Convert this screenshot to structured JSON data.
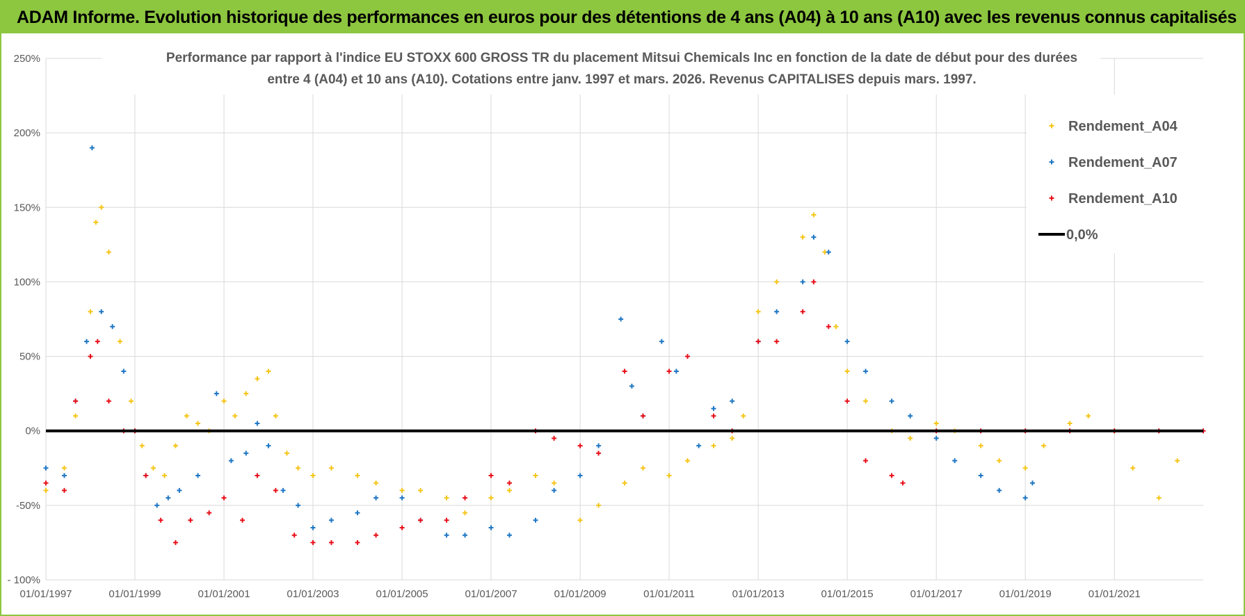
{
  "header": {
    "banner": "ADAM Informe. Evolution historique des performances en euros pour des détentions de 4 ans (A04) à 10 ans (A10) avec les revenus connus capitalisés"
  },
  "colors": {
    "banner_bg": "#8dc63f",
    "A04": "#f5c518",
    "A07": "#1f77c4",
    "A10": "#e8101a",
    "zero_line": "#000000",
    "grid": "#d9d9d9"
  },
  "chart_data": {
    "type": "scatter",
    "title_lines": [
      "Performance par rapport à l'indice EU STOXX 600 GROSS TR  du placement Mitsui Chemicals Inc en fonction de la date de début pour des durées",
      "entre 4 (A04) et 10 ans (A10).  Cotations entre janv. 1997 et mars. 2026.  Revenus CAPITALISES depuis mars. 1997."
    ],
    "x_range": [
      "1997-01-01",
      "2022-12-31"
    ],
    "x_ticks": [
      "01/01/1997",
      "01/01/1999",
      "01/01/2001",
      "01/01/2003",
      "01/01/2005",
      "01/01/2007",
      "01/01/2009",
      "01/01/2011",
      "01/01/2013",
      "01/01/2015",
      "01/01/2017",
      "01/01/2019",
      "01/01/2021"
    ],
    "y_range": [
      -100,
      250
    ],
    "y_ticks": [
      -100,
      -50,
      0,
      50,
      100,
      150,
      200,
      250
    ],
    "y_tick_labels": [
      "- 100%",
      "-50%",
      "0%",
      "50%",
      "100%",
      "150%",
      "200%",
      "250%"
    ],
    "grid": true,
    "legend_position": "top-right",
    "legend": [
      {
        "label": "Rendement_A04",
        "marker": "plus"
      },
      {
        "label": "Rendement_A07",
        "marker": "plus"
      },
      {
        "label": "Rendement_A10",
        "marker": "plus"
      },
      {
        "label": "0,0%",
        "marker": "line"
      }
    ],
    "series": [
      {
        "name": "Rendement_A04",
        "x": [
          "1997-01-01",
          "1997-06-01",
          "1997-09-01",
          "1998-01-01",
          "1998-02-15",
          "1998-04-01",
          "1998-06-01",
          "1998-09-01",
          "1998-12-01",
          "1999-03-01",
          "1999-06-01",
          "1999-09-01",
          "1999-12-01",
          "2000-03-01",
          "2000-06-01",
          "2000-09-01",
          "2001-01-01",
          "2001-04-01",
          "2001-07-01",
          "2001-10-01",
          "2002-01-01",
          "2002-03-01",
          "2002-06-01",
          "2002-09-01",
          "2003-01-01",
          "2003-06-01",
          "2004-01-01",
          "2004-06-01",
          "2005-01-01",
          "2005-06-01",
          "2006-01-01",
          "2006-06-01",
          "2007-01-01",
          "2007-06-01",
          "2008-01-01",
          "2008-06-01",
          "2009-01-01",
          "2009-06-01",
          "2010-01-01",
          "2010-06-01",
          "2011-01-01",
          "2011-06-01",
          "2012-01-01",
          "2012-06-01",
          "2012-09-01",
          "2013-01-01",
          "2013-06-01",
          "2014-01-01",
          "2014-04-01",
          "2014-07-01",
          "2014-10-01",
          "2015-01-01",
          "2015-06-01",
          "2016-01-01",
          "2016-06-01",
          "2017-01-01",
          "2017-06-01",
          "2018-01-01",
          "2018-06-01",
          "2019-01-01",
          "2019-06-01",
          "2020-01-01",
          "2020-06-01",
          "2021-01-01",
          "2021-06-01",
          "2022-01-01",
          "2022-06-01"
        ],
        "y": [
          -40,
          -25,
          10,
          80,
          140,
          150,
          120,
          60,
          20,
          -10,
          -25,
          -30,
          -10,
          10,
          5,
          0,
          20,
          10,
          25,
          35,
          40,
          10,
          -15,
          -25,
          -30,
          -25,
          -30,
          -35,
          -40,
          -40,
          -45,
          -55,
          -45,
          -40,
          -30,
          -35,
          -60,
          -50,
          -35,
          -25,
          -30,
          -20,
          -10,
          -5,
          10,
          80,
          100,
          130,
          145,
          120,
          70,
          40,
          20,
          0,
          -5,
          5,
          0,
          -10,
          -20,
          -25,
          -10,
          5,
          10,
          0,
          -25,
          -45,
          -20
        ]
      },
      {
        "name": "Rendement_A07",
        "x": [
          "1997-01-01",
          "1997-06-01",
          "1997-09-01",
          "1997-12-01",
          "1998-01-15",
          "1998-04-01",
          "1998-07-01",
          "1998-10-01",
          "1999-01-01",
          "1999-04-01",
          "1999-07-01",
          "1999-10-01",
          "2000-01-01",
          "2000-06-01",
          "2000-11-01",
          "2001-03-01",
          "2001-07-01",
          "2001-10-01",
          "2002-01-01",
          "2002-05-01",
          "2002-09-01",
          "2003-01-01",
          "2003-06-01",
          "2004-01-01",
          "2004-06-01",
          "2005-01-01",
          "2005-06-01",
          "2006-01-01",
          "2006-06-01",
          "2007-01-01",
          "2007-06-01",
          "2008-01-01",
          "2008-06-01",
          "2009-01-01",
          "2009-06-01",
          "2009-12-01",
          "2010-03-01",
          "2010-06-01",
          "2010-11-01",
          "2011-03-01",
          "2011-09-01",
          "2012-01-01",
          "2012-06-01",
          "2013-01-01",
          "2013-06-01",
          "2014-01-01",
          "2014-04-01",
          "2014-08-01",
          "2015-01-01",
          "2015-06-01",
          "2016-01-01",
          "2016-06-01",
          "2017-01-01",
          "2017-06-01",
          "2018-01-01",
          "2018-06-01",
          "2019-01-01",
          "2019-03-01"
        ],
        "y": [
          -25,
          -30,
          20,
          60,
          190,
          80,
          70,
          40,
          0,
          -30,
          -50,
          -45,
          -40,
          -30,
          25,
          -20,
          -15,
          5,
          -10,
          -40,
          -50,
          -65,
          -60,
          -55,
          -45,
          -45,
          -60,
          -70,
          -70,
          -65,
          -70,
          -60,
          -40,
          -30,
          -10,
          75,
          30,
          10,
          60,
          40,
          -10,
          15,
          20,
          60,
          80,
          100,
          130,
          120,
          60,
          40,
          20,
          10,
          -5,
          -20,
          -30,
          -40,
          -45,
          -35
        ]
      },
      {
        "name": "Rendement_A10",
        "x": [
          "1997-01-01",
          "1997-06-01",
          "1997-09-01",
          "1998-01-01",
          "1998-03-01",
          "1998-06-01",
          "1998-10-01",
          "1999-01-01",
          "1999-04-01",
          "1999-08-01",
          "1999-12-01",
          "2000-04-01",
          "2000-09-01",
          "2001-01-01",
          "2001-06-01",
          "2001-10-01",
          "2002-03-01",
          "2002-08-01",
          "2003-01-01",
          "2003-06-01",
          "2004-01-01",
          "2004-06-01",
          "2005-01-01",
          "2005-06-01",
          "2006-01-01",
          "2006-06-01",
          "2007-01-01",
          "2007-06-01",
          "2008-01-01",
          "2008-06-01",
          "2009-01-01",
          "2009-06-01",
          "2010-01-01",
          "2010-06-01",
          "2011-01-01",
          "2011-06-01",
          "2012-01-01",
          "2012-06-01",
          "2013-01-01",
          "2013-06-01",
          "2014-01-01",
          "2014-04-01",
          "2014-08-01",
          "2015-01-01",
          "2015-06-01",
          "2016-01-01",
          "2016-04-01",
          "2017-01-01",
          "2018-01-01",
          "2019-01-01",
          "2020-01-01",
          "2021-01-01",
          "2022-01-01",
          "2022-12-31"
        ],
        "y": [
          -35,
          -40,
          20,
          50,
          60,
          20,
          0,
          0,
          -30,
          -60,
          -75,
          -60,
          -55,
          -45,
          -60,
          -30,
          -40,
          -70,
          -75,
          -75,
          -75,
          -70,
          -65,
          -60,
          -60,
          -45,
          -30,
          -35,
          0,
          -5,
          -10,
          -15,
          40,
          10,
          40,
          50,
          10,
          0,
          60,
          60,
          80,
          100,
          70,
          20,
          -20,
          -30,
          -35,
          0,
          0,
          0,
          0,
          0,
          0,
          0
        ]
      }
    ]
  }
}
